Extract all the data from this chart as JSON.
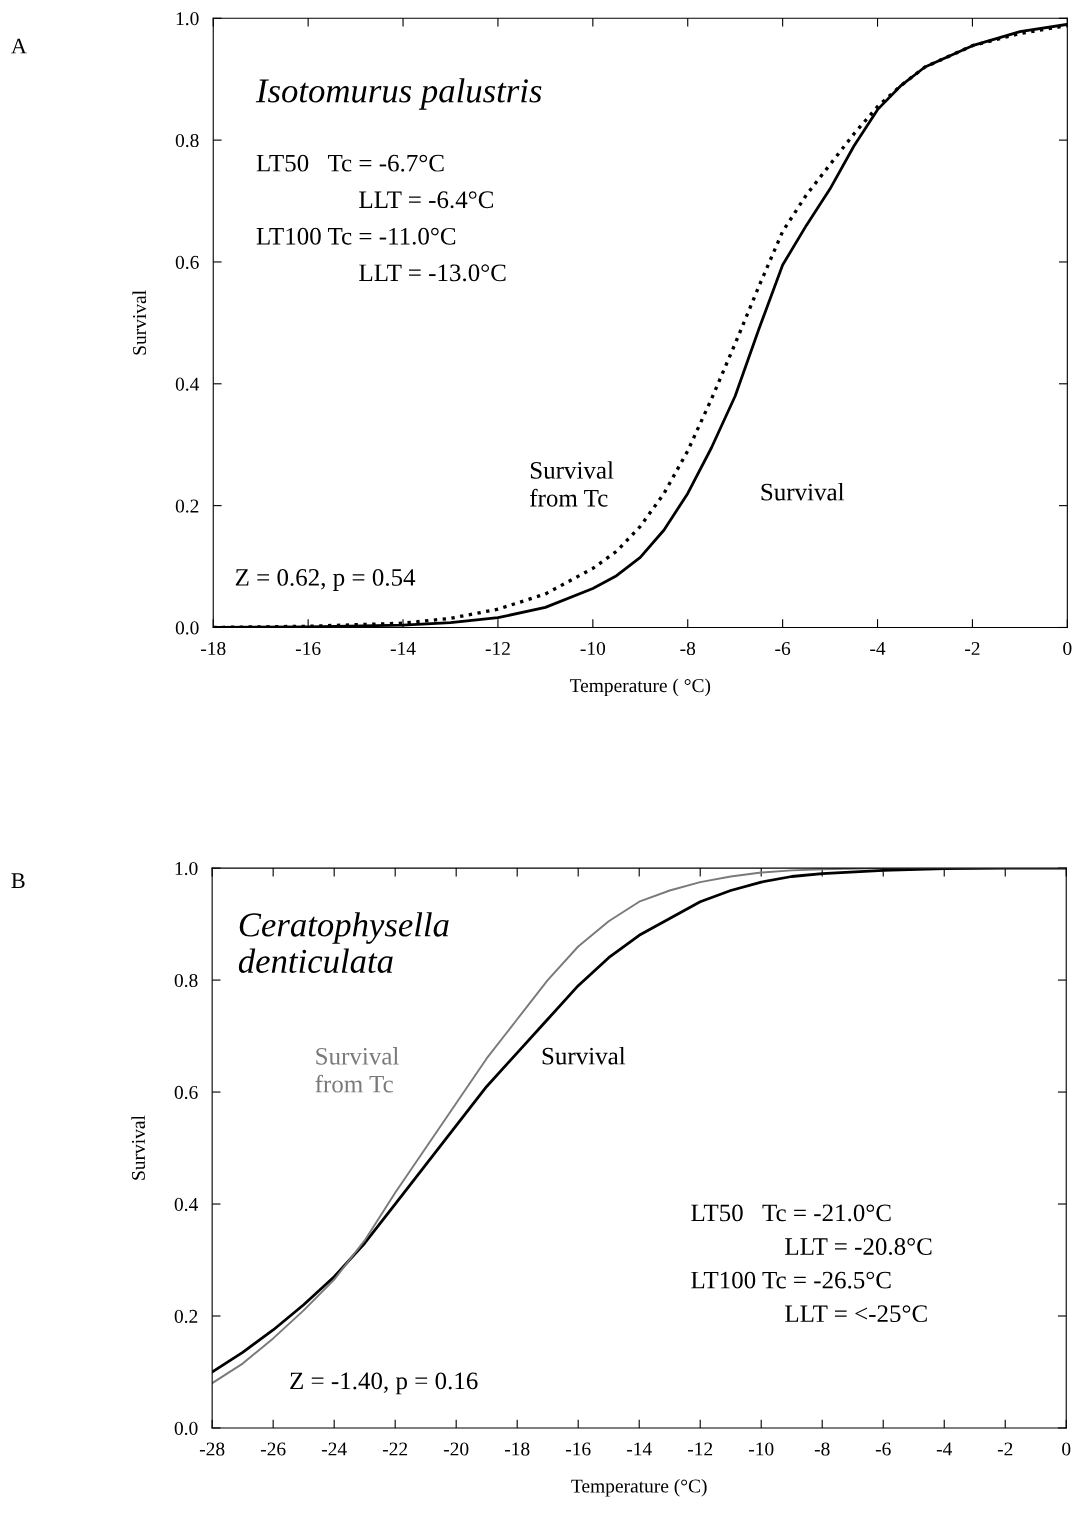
{
  "chart_data": [
    {
      "type": "line",
      "xlabel": "Temperature ( °C)",
      "ylabel": "Survival",
      "xlim": [
        -18,
        0
      ],
      "ylim": [
        0,
        1
      ],
      "xticks": [
        -18,
        -16,
        -14,
        -12,
        -10,
        -8,
        -6,
        -4,
        -2,
        0
      ],
      "yticks": [
        {
          "value": 0,
          "label": "0.0"
        },
        {
          "value": 0.2,
          "label": "0.2"
        },
        {
          "value": 0.4,
          "label": "0.4"
        },
        {
          "value": 0.6,
          "label": "0.6"
        },
        {
          "value": 0.8,
          "label": "0.8"
        },
        {
          "value": 1,
          "label": "1.0"
        }
      ],
      "annotations": [
        "A",
        "Isotomurus palustris",
        "LT50   Tc = -6.7°C",
        "LLT = -6.4°C",
        "LT100 Tc = -11.0°C",
        "LLT = -13.0°C",
        "Z = 0.62, p = 0.54"
      ],
      "grid": false,
      "legend": false,
      "series": [
        {
          "name": "Survival",
          "color": "#000000",
          "line_style": "solid",
          "x": [
            -18,
            -16,
            -14,
            -13,
            -12,
            -11,
            -10,
            -9.5,
            -9,
            -8.5,
            -8,
            -7.5,
            -7,
            -6.5,
            -6,
            -5.5,
            -5,
            -4.5,
            -4,
            -3.5,
            -3,
            -2,
            -1,
            0
          ],
          "values": [
            0,
            0.001,
            0.004,
            0.008,
            0.016,
            0.033,
            0.064,
            0.085,
            0.115,
            0.16,
            0.22,
            0.295,
            0.38,
            0.49,
            0.595,
            0.66,
            0.72,
            0.79,
            0.85,
            0.89,
            0.92,
            0.955,
            0.978,
            0.99
          ]
        },
        {
          "name": "Survival from Tc",
          "color": "#000000",
          "line_style": "dotted",
          "x": [
            -18,
            -16,
            -14,
            -13,
            -12,
            -11,
            -10,
            -9.5,
            -9,
            -8.5,
            -8,
            -7.5,
            -7,
            -6.5,
            -6,
            -5.5,
            -5,
            -4.5,
            -4,
            -3.5,
            -3,
            -2,
            -1,
            0
          ],
          "values": [
            0,
            0.002,
            0.007,
            0.015,
            0.03,
            0.055,
            0.097,
            0.125,
            0.166,
            0.22,
            0.29,
            0.375,
            0.466,
            0.56,
            0.65,
            0.71,
            0.76,
            0.81,
            0.855,
            0.89,
            0.92,
            0.955,
            0.975,
            0.988
          ]
        }
      ]
    },
    {
      "type": "line",
      "xlabel": "Temperature (°C)",
      "ylabel": "Survival",
      "xlim": [
        -28,
        0
      ],
      "ylim": [
        0,
        1
      ],
      "xticks": [
        -28,
        -26,
        -24,
        -22,
        -20,
        -18,
        -16,
        -14,
        -12,
        -10,
        -8,
        -6,
        -4,
        -2,
        0
      ],
      "yticks": [
        {
          "value": 0,
          "label": "0.0"
        },
        {
          "value": 0.2,
          "label": "0.2"
        },
        {
          "value": 0.4,
          "label": "0.4"
        },
        {
          "value": 0.6,
          "label": "0.6"
        },
        {
          "value": 0.8,
          "label": "0.8"
        },
        {
          "value": 1,
          "label": "1.0"
        }
      ],
      "annotations": [
        "B",
        "Ceratophysella\ndenticulata",
        "LT50   Tc = -21.0°C",
        "LLT = -20.8°C",
        "LT100 Tc = -26.5°C",
        "LLT = <-25°C",
        "Z = -1.40, p = 0.16"
      ],
      "grid": false,
      "legend": false,
      "series": [
        {
          "name": "Survival",
          "color": "#000000",
          "line_style": "solid",
          "x": [
            -28,
            -27,
            -26,
            -25,
            -24,
            -23,
            -22,
            -21,
            -20,
            -19,
            -18,
            -17,
            -16,
            -15,
            -14,
            -13,
            -12,
            -11,
            -10,
            -9,
            -8,
            -6,
            -4,
            -2,
            0
          ],
          "values": [
            0.1,
            0.135,
            0.175,
            0.22,
            0.27,
            0.33,
            0.4,
            0.47,
            0.54,
            0.61,
            0.67,
            0.73,
            0.79,
            0.84,
            0.88,
            0.91,
            0.94,
            0.96,
            0.975,
            0.985,
            0.99,
            0.996,
            0.999,
            1,
            1
          ]
        },
        {
          "name": "Survival from Tc",
          "color": "#7a7a7a",
          "line_style": "solid",
          "x": [
            -28,
            -27,
            -26,
            -25,
            -24,
            -23,
            -22,
            -21,
            -20,
            -19,
            -18,
            -17,
            -16,
            -15,
            -14,
            -13,
            -12,
            -11,
            -10,
            -9,
            -8,
            -6,
            -4,
            -2,
            0
          ],
          "values": [
            0.08,
            0.115,
            0.16,
            0.21,
            0.265,
            0.335,
            0.42,
            0.5,
            0.58,
            0.66,
            0.73,
            0.8,
            0.86,
            0.905,
            0.94,
            0.96,
            0.975,
            0.985,
            0.992,
            0.996,
            0.998,
            1,
            1,
            1,
            1
          ]
        }
      ]
    }
  ]
}
